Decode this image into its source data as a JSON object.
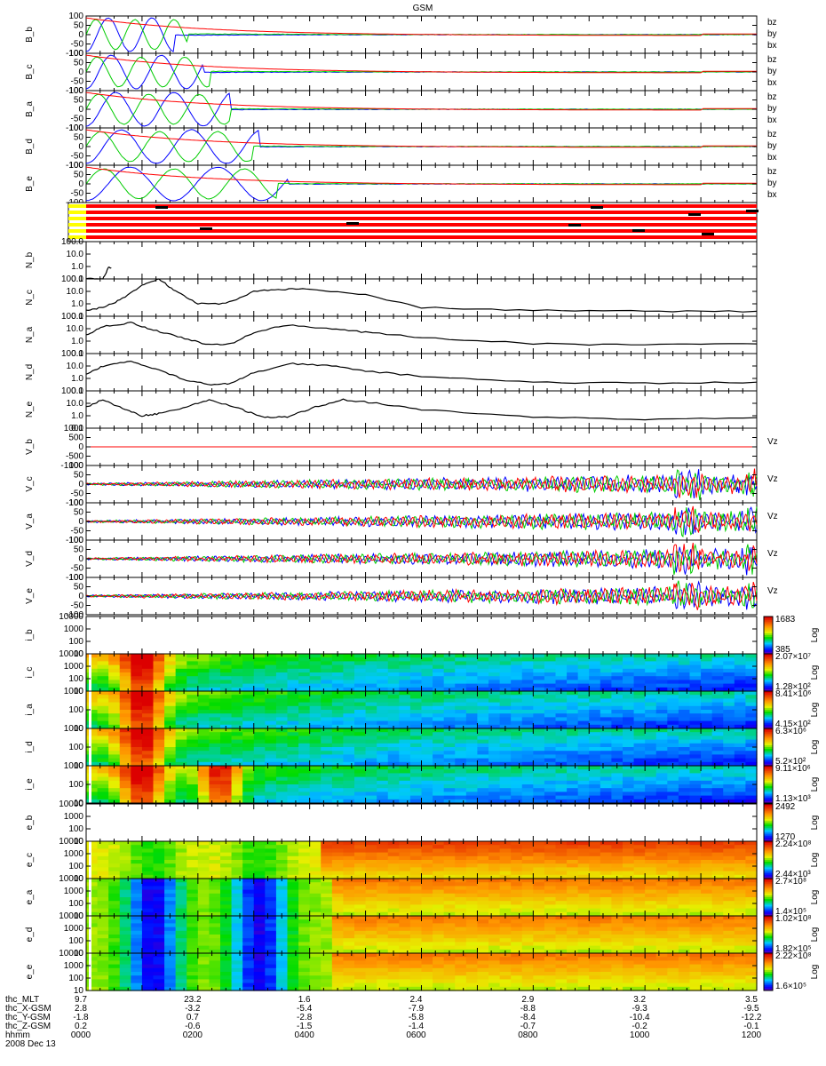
{
  "figure_title": "GSM",
  "colors": {
    "bx": "#0000ff",
    "by": "#00cc00",
    "bz": "#ff0000",
    "n": "#000000",
    "flag_red": "#ff0000",
    "flag_yellow": "#ffff00"
  },
  "flags_panel": {
    "ylabel": ""
  },
  "ephemeris": {
    "rows": [
      {
        "label": "thc_MLT",
        "values": [
          "9.7",
          "23.2",
          "1.6",
          "2.4",
          "2.9",
          "3.2",
          "3.5"
        ]
      },
      {
        "label": "thc_X-GSM",
        "values": [
          "2.8",
          "-3.2",
          "-5.4",
          "-7.9",
          "-8.8",
          "-9.3",
          "-9.5"
        ]
      },
      {
        "label": "thc_Y-GSM",
        "values": [
          "-1.8",
          "0.7",
          "-2.8",
          "-5.8",
          "-8.4",
          "-10.4",
          "-12.2"
        ]
      },
      {
        "label": "thc_Z-GSM",
        "values": [
          "0.2",
          "-0.6",
          "-1.5",
          "-1.4",
          "-0.7",
          "-0.2",
          "-0.1"
        ]
      },
      {
        "label": "hhmm",
        "values": [
          "0000",
          "0200",
          "0400",
          "0600",
          "0800",
          "1000",
          "1200"
        ]
      }
    ],
    "date": "2008 Dec 13"
  },
  "chart_data": [
    {
      "type": "line",
      "ylabel": "B_b",
      "ylim": [
        -100,
        100
      ],
      "yticks": [
        "100",
        "50",
        "0",
        "-50",
        "-100"
      ],
      "legend": [
        "bz",
        "by",
        "bx"
      ]
    },
    {
      "type": "line",
      "ylabel": "B_c",
      "ylim": [
        -100,
        100
      ],
      "yticks": [
        "100",
        "50",
        "0",
        "-50",
        "-100"
      ],
      "legend": [
        "bz",
        "by",
        "bx"
      ]
    },
    {
      "type": "line",
      "ylabel": "B_a",
      "ylim": [
        -100,
        100
      ],
      "yticks": [
        "100",
        "50",
        "0",
        "-50",
        "-100"
      ],
      "legend": [
        "bz",
        "by",
        "bx"
      ]
    },
    {
      "type": "line",
      "ylabel": "B_d",
      "ylim": [
        -100,
        100
      ],
      "yticks": [
        "100",
        "50",
        "0",
        "-50",
        "-100"
      ],
      "legend": [
        "bz",
        "by",
        "bx"
      ]
    },
    {
      "type": "line",
      "ylabel": "B_e",
      "ylim": [
        -100,
        100
      ],
      "yticks": [
        "100",
        "50",
        "0",
        "-50",
        "-100"
      ],
      "legend": [
        "bz",
        "by",
        "bx"
      ]
    },
    {
      "type": "line",
      "ylabel": "N_b",
      "log_y": true,
      "yticks": [
        "100.0",
        "10.0",
        "1.0",
        "0.1"
      ],
      "series": [
        {
          "x": [
            0.0,
            0.3,
            0.4,
            0.45
          ],
          "y": [
            0.1,
            0.1,
            0.8,
            0.8
          ]
        }
      ]
    },
    {
      "type": "line",
      "ylabel": "N_c",
      "log_y": true,
      "yticks": [
        "100.0",
        "10.0",
        "1.0",
        "0.1"
      ],
      "series": [
        {
          "x": [
            0,
            0.3,
            0.6,
            1.0,
            1.3,
            1.6,
            2.0,
            2.5,
            3.0,
            3.5,
            4.0,
            5,
            6,
            8,
            10,
            12
          ],
          "y": [
            0.3,
            0.5,
            2,
            30,
            100,
            10,
            1,
            1,
            10,
            15,
            15,
            5,
            0.5,
            0.3,
            0.25,
            0.25
          ]
        }
      ]
    },
    {
      "type": "line",
      "ylabel": "N_a",
      "log_y": true,
      "yticks": [
        "100.0",
        "10.0",
        "1.0",
        "0.1"
      ],
      "series": [
        {
          "x": [
            0,
            0.3,
            0.8,
            1.2,
            1.7,
            2.2,
            2.6,
            3.0,
            3.6,
            4.4,
            5,
            6,
            8,
            10,
            12
          ],
          "y": [
            3,
            15,
            30,
            8,
            2,
            0.5,
            0.6,
            5,
            20,
            10,
            5,
            2,
            0.6,
            0.5,
            0.6
          ]
        }
      ]
    },
    {
      "type": "line",
      "ylabel": "N_d",
      "log_y": true,
      "yticks": [
        "100.0",
        "10.0",
        "1.0",
        "0.1"
      ],
      "series": [
        {
          "x": [
            0,
            0.3,
            0.8,
            1.3,
            1.8,
            2.3,
            2.6,
            3.0,
            3.7,
            4.4,
            5,
            6,
            8,
            10,
            12
          ],
          "y": [
            2,
            10,
            25,
            5,
            0.7,
            0.3,
            0.4,
            3,
            15,
            10,
            4,
            1.5,
            0.5,
            0.4,
            0.5
          ]
        }
      ]
    },
    {
      "type": "line",
      "ylabel": "N_e",
      "log_y": true,
      "yticks": [
        "100.0",
        "10.0",
        "1.0",
        "0.1"
      ],
      "series": [
        {
          "x": [
            0,
            0.3,
            0.7,
            1.0,
            1.3,
            1.8,
            2.2,
            2.8,
            3.2,
            3.6,
            4.1,
            4.6,
            5.2,
            6,
            8,
            10,
            12
          ],
          "y": [
            5,
            20,
            3,
            1,
            1.5,
            5,
            20,
            3,
            0.7,
            0.8,
            5,
            20,
            10,
            3,
            0.8,
            0.5,
            0.7
          ]
        }
      ]
    },
    {
      "type": "line",
      "ylabel": "V_b",
      "ylim": [
        -1000,
        1000
      ],
      "yticks": [
        "1000",
        "500",
        "0",
        "-500",
        "-1000"
      ],
      "legend": [
        "Vz"
      ]
    },
    {
      "type": "line",
      "ylabel": "V_c",
      "ylim": [
        -100,
        100
      ],
      "yticks": [
        "100",
        "50",
        "0",
        "-50",
        "-100"
      ],
      "legend": [
        "Vz"
      ]
    },
    {
      "type": "line",
      "ylabel": "V_a",
      "ylim": [
        -100,
        100
      ],
      "yticks": [
        "100",
        "50",
        "0",
        "-50",
        "-100"
      ],
      "legend": [
        "Vz"
      ]
    },
    {
      "type": "line",
      "ylabel": "V_d",
      "ylim": [
        -100,
        100
      ],
      "yticks": [
        "100",
        "50",
        "0",
        "-50",
        "-100"
      ],
      "legend": [
        "Vz"
      ]
    },
    {
      "type": "line",
      "ylabel": "V_e",
      "ylim": [
        -100,
        100
      ],
      "yticks": [
        "100",
        "50",
        "0",
        "-50",
        "-100"
      ],
      "legend": [
        "Vz"
      ]
    },
    {
      "type": "heatmap",
      "ylabel": "i_b",
      "yticks": [
        "10000",
        "1000",
        "100",
        "10"
      ],
      "cb_hi": "1683",
      "cb_lo": "385",
      "cb_unit": "Log"
    },
    {
      "type": "heatmap",
      "ylabel": "i_c",
      "yticks": [
        "10000",
        "1000",
        "100",
        "10"
      ],
      "cb_hi": "2.07×10⁷",
      "cb_lo": "1.28×10²",
      "cb_unit": "Log"
    },
    {
      "type": "heatmap",
      "ylabel": "i_a",
      "yticks": [
        "1000",
        "100",
        "10"
      ],
      "cb_hi": "8.41×10⁶",
      "cb_lo": "4.15×10²",
      "cb_unit": "Log"
    },
    {
      "type": "heatmap",
      "ylabel": "i_d",
      "yticks": [
        "1000",
        "100",
        "10"
      ],
      "cb_hi": "6.3×10⁶",
      "cb_lo": "5.2×10²",
      "cb_unit": "Log"
    },
    {
      "type": "heatmap",
      "ylabel": "i_e",
      "yticks": [
        "1000",
        "100",
        "10"
      ],
      "cb_hi": "9.11×10⁶",
      "cb_lo": "1.13×10³",
      "cb_unit": "Log"
    },
    {
      "type": "heatmap",
      "ylabel": "e_b",
      "yticks": [
        "10000",
        "1000",
        "100",
        "10"
      ],
      "cb_hi": "2492",
      "cb_lo": "1270",
      "cb_unit": "Log"
    },
    {
      "type": "heatmap",
      "ylabel": "e_c",
      "yticks": [
        "10000",
        "1000",
        "100",
        "10"
      ],
      "cb_hi": "2.24×10⁸",
      "cb_lo": "2.44×10³",
      "cb_unit": "Log"
    },
    {
      "type": "heatmap",
      "ylabel": "e_a",
      "yticks": [
        "10000",
        "1000",
        "100",
        "10"
      ],
      "cb_hi": "2.7×10⁸",
      "cb_lo": "1.4×10⁵",
      "cb_unit": "Log"
    },
    {
      "type": "heatmap",
      "ylabel": "e_d",
      "yticks": [
        "10000",
        "1000",
        "100",
        "10"
      ],
      "cb_hi": "1.02×10⁸",
      "cb_lo": "1.82×10⁵",
      "cb_unit": "Log"
    },
    {
      "type": "heatmap",
      "ylabel": "e_e",
      "yticks": [
        "10000",
        "1000",
        "100",
        "10"
      ],
      "cb_hi": "2.22×10⁸",
      "cb_lo": "1.6×10⁵",
      "cb_unit": "Log"
    }
  ]
}
